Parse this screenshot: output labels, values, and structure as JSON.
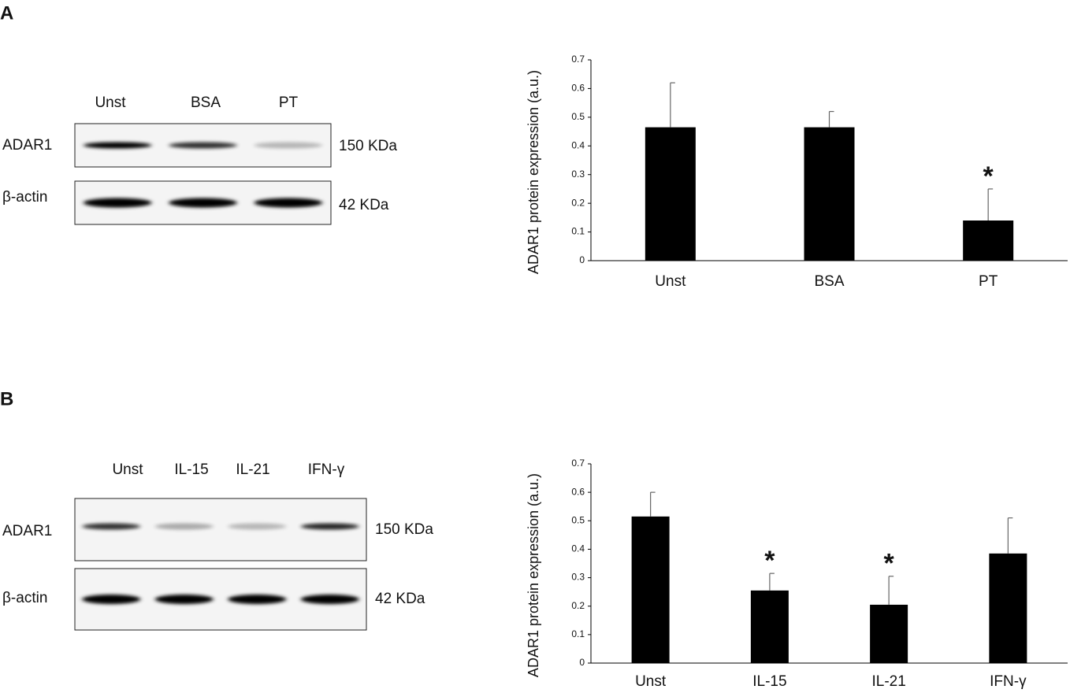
{
  "panels": [
    {
      "label": "A",
      "lanes": [
        "Unst",
        "BSA",
        "PT"
      ],
      "rows": [
        {
          "name": "ADAR1",
          "size": "150 KDa"
        },
        {
          "name": "β-actin",
          "size": "42 KDa"
        }
      ]
    },
    {
      "label": "B",
      "lanes": [
        "Unst",
        "IL-15",
        "IL-21",
        "IFN-γ"
      ],
      "rows": [
        {
          "name": "ADAR1",
          "size": "150 KDa"
        },
        {
          "name": "β-actin",
          "size": "42 KDa"
        }
      ]
    }
  ],
  "chart_data": [
    {
      "type": "bar",
      "y_label": "ADAR1 protein expression (a.u.)",
      "categories": [
        "Unst",
        "BSA",
        "PT"
      ],
      "values": [
        0.465,
        0.465,
        0.14
      ],
      "errors": [
        0.155,
        0.055,
        0.11
      ],
      "significance": [
        null,
        null,
        "*"
      ],
      "color": "#000000",
      "ylim": [
        0,
        0.7
      ],
      "yticks": [
        0,
        0.1,
        0.2,
        0.3,
        0.4,
        0.5,
        0.6,
        0.7
      ]
    },
    {
      "type": "bar",
      "y_label": "ADAR1 protein expression (a.u.)",
      "categories": [
        "Unst",
        "IL-15",
        "IL-21",
        "IFN-γ"
      ],
      "values": [
        0.515,
        0.255,
        0.205,
        0.385
      ],
      "errors": [
        0.085,
        0.06,
        0.1,
        0.125
      ],
      "significance": [
        null,
        "*",
        "*",
        null
      ],
      "color": "#000000",
      "ylim": [
        0,
        0.7
      ],
      "yticks": [
        0,
        0.1,
        0.2,
        0.3,
        0.4,
        0.5,
        0.6,
        0.7
      ]
    }
  ]
}
